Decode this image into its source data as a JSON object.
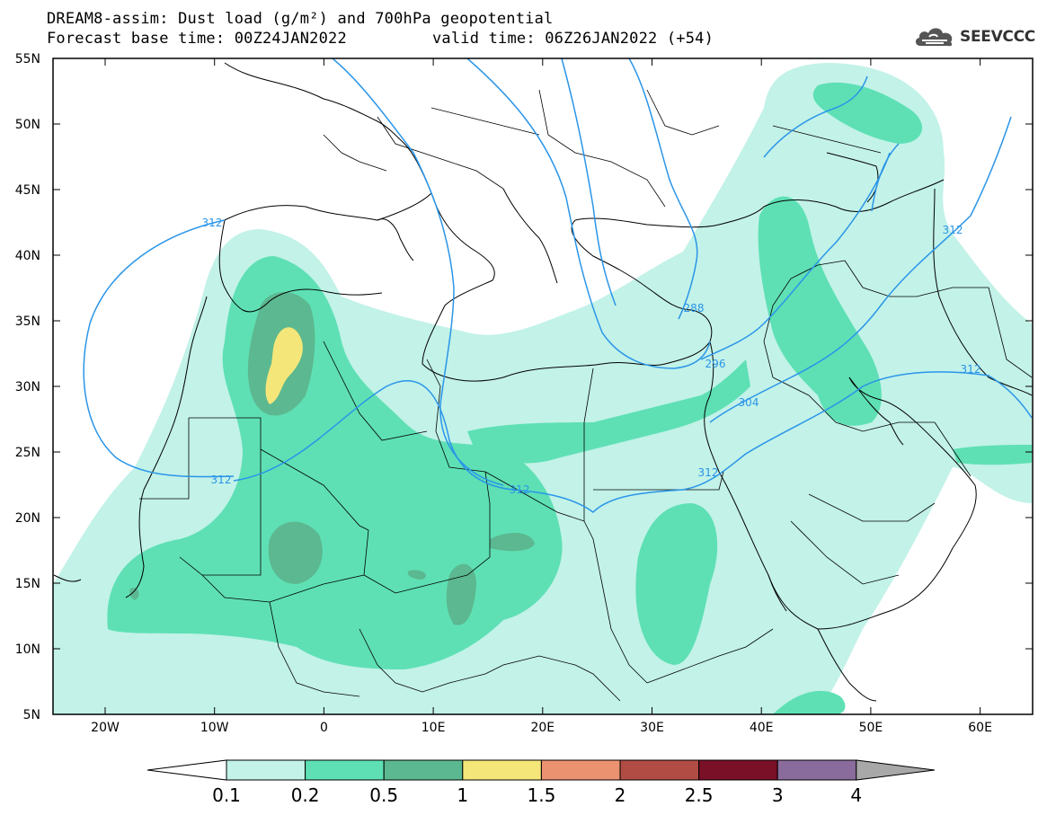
{
  "header": {
    "title_line1": "DREAM8-assim: Dust load (g/m²) and 700hPa geopotential",
    "title_line2": "Forecast base time: 00Z24JAN2022",
    "title_line2b": "valid time: 06Z26JAN2022 (+54)",
    "logo": "SEEVCCC",
    "logo_icon": "cloud-icon"
  },
  "map": {
    "lon_ticks": [
      "20W",
      "10W",
      "0",
      "10E",
      "20E",
      "30E",
      "40E",
      "50E",
      "60E"
    ],
    "lat_ticks": [
      "55N",
      "50N",
      "45N",
      "40N",
      "35N",
      "30N",
      "25N",
      "20N",
      "15N",
      "10N",
      "5N"
    ],
    "contour_labels": [
      "312",
      "312",
      "312",
      "312",
      "296",
      "288",
      "304",
      "312",
      "312"
    ]
  },
  "legend": {
    "labels": [
      "0.1",
      "0.2",
      "0.5",
      "1",
      "1.5",
      "2",
      "2.5",
      "3",
      "4"
    ],
    "colors": {
      "c1": "#c2f2e8",
      "c2": "#5ee0b4",
      "c3": "#5cb890",
      "c4": "#f5e67a",
      "c5": "#eb9270",
      "c6": "#b04c44",
      "c7": "#7a0f28",
      "c8": "#8a6c9c",
      "c9": "#a8a8a8"
    }
  },
  "colors": {
    "contour": "#2a95e8",
    "coast": "#000000",
    "background": "#ffffff"
  }
}
